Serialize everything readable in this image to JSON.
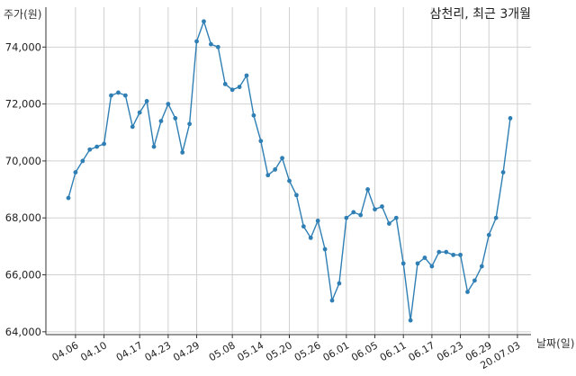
{
  "chart_data": {
    "type": "line",
    "title": "삼천리, 최근 3개월",
    "ylabel": "주가(원)",
    "xlabel": "날짜(일)",
    "ylim": [
      63900,
      75400
    ],
    "yticks": [
      64000,
      66000,
      68000,
      70000,
      72000,
      74000
    ],
    "ytick_labels": [
      "64,000",
      "66,000",
      "68,000",
      "70,000",
      "72,000",
      "74,000"
    ],
    "x_tick_labels": [
      "04.06",
      "04.10",
      "04.17",
      "04.23",
      "04.29",
      "05.08",
      "05.14",
      "05.20",
      "05.26",
      "06.01",
      "06.05",
      "06.11",
      "06.17",
      "06.23",
      "06.29",
      "20.07.03"
    ],
    "x_tick_indices": [
      2,
      6,
      11,
      15,
      19,
      24,
      28,
      32,
      36,
      40,
      44,
      48,
      52,
      56,
      60,
      64
    ],
    "grid": true,
    "line_color": "#2f7fb5",
    "series": [
      {
        "values": [
          68700,
          69600,
          70000,
          70400,
          70500,
          70600,
          72300,
          72400,
          72300,
          71200,
          71700,
          72100,
          70500,
          71400,
          72000,
          71500,
          70300,
          71300,
          74200,
          74900,
          74100,
          74000,
          72700,
          72500,
          72600,
          73000,
          71600,
          70700,
          69500,
          69700,
          70100,
          69300,
          68800,
          67700,
          67300,
          67900,
          66900,
          65100,
          65700,
          68000,
          68200,
          68100,
          69000,
          68300,
          68400,
          67800,
          68000,
          66400,
          64400,
          66400,
          66600,
          66300,
          66800,
          66800,
          66700,
          66700,
          65400,
          65800,
          66300,
          67400,
          68000,
          69600,
          71500
        ]
      }
    ]
  }
}
